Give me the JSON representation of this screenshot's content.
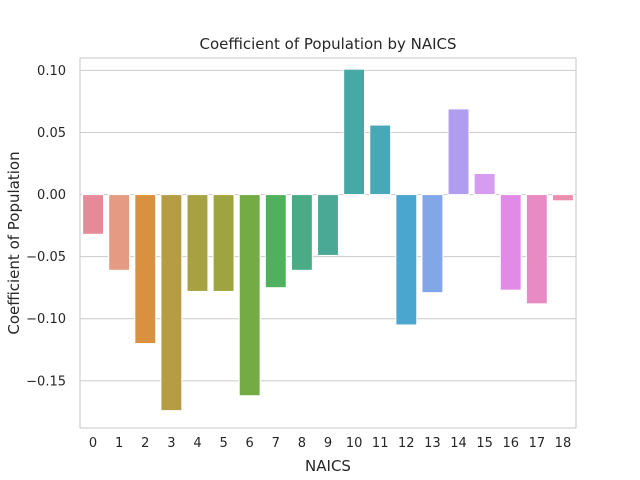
{
  "chart_data": {
    "type": "bar",
    "title": "Coefficient of Population by NAICS",
    "xlabel": "NAICS",
    "ylabel": "Coefficient of Population",
    "ylim": [
      -0.188,
      0.11
    ],
    "yticks": [
      0.1,
      0.05,
      0.0,
      -0.05,
      -0.1,
      -0.15
    ],
    "ytick_labels": [
      "0.10",
      "0.05",
      "0.00",
      "−0.05",
      "−0.10",
      "−0.15"
    ],
    "grid": "horizontal",
    "categories": [
      "0",
      "1",
      "2",
      "3",
      "4",
      "5",
      "6",
      "7",
      "8",
      "9",
      "10",
      "11",
      "12",
      "13",
      "14",
      "15",
      "16",
      "17",
      "18"
    ],
    "values": [
      -0.032,
      -0.061,
      -0.12,
      -0.174,
      -0.078,
      -0.078,
      -0.162,
      -0.075,
      -0.061,
      -0.049,
      0.101,
      0.056,
      -0.105,
      -0.079,
      0.069,
      0.017,
      -0.077,
      -0.088,
      -0.005
    ],
    "colors": [
      "#e8899a",
      "#e59b83",
      "#d9903f",
      "#b69d45",
      "#a8a142",
      "#9ea43f",
      "#75ab45",
      "#4fb05e",
      "#4bab86",
      "#49a994",
      "#47a9a6",
      "#48a8b8",
      "#4aa5cf",
      "#82a7e8",
      "#b19df0",
      "#d69cf2",
      "#e18be7",
      "#e88bc5",
      "#ec8fae"
    ]
  }
}
